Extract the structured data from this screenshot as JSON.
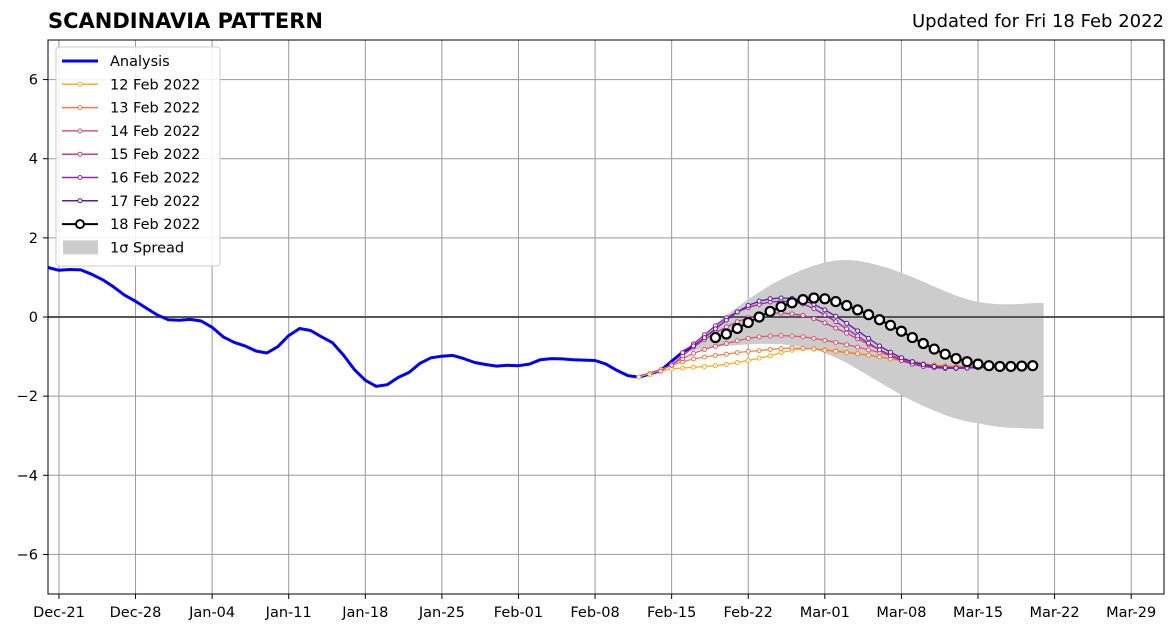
{
  "title": "SCANDINAVIA PATTERN",
  "subtitle": "Updated for Fri 18 Feb 2022",
  "chart_data": {
    "type": "line",
    "title": "SCANDINAVIA PATTERN",
    "xlabel": "",
    "ylabel": "",
    "xlim": [
      "2021-12-20",
      "2022-04-01"
    ],
    "ylim": [
      -7,
      7
    ],
    "yticks": [
      -6,
      -4,
      -2,
      0,
      2,
      4,
      6
    ],
    "ytick_labels": [
      "−6",
      "−4",
      "−2",
      "0",
      "2",
      "4",
      "6"
    ],
    "xticks": [
      "2021-12-21",
      "2021-12-28",
      "2022-01-04",
      "2022-01-11",
      "2022-01-18",
      "2022-01-25",
      "2022-02-01",
      "2022-02-08",
      "2022-02-15",
      "2022-02-22",
      "2022-03-01",
      "2022-03-08",
      "2022-03-15",
      "2022-03-22",
      "2022-03-29"
    ],
    "xtick_labels": [
      "Dec-21",
      "Dec-28",
      "Jan-04",
      "Jan-11",
      "Jan-18",
      "Jan-25",
      "Feb-01",
      "Feb-08",
      "Feb-15",
      "Feb-22",
      "Mar-01",
      "Mar-08",
      "Mar-15",
      "Mar-22",
      "Mar-29"
    ],
    "grid": true,
    "legend_position": "upper-left",
    "series": [
      {
        "name": "Analysis",
        "color": "#0000ee",
        "start": "2021-12-20",
        "values": [
          1.25,
          1.18,
          1.2,
          1.19,
          1.08,
          0.94,
          0.76,
          0.55,
          0.4,
          0.22,
          0.05,
          -0.07,
          -0.08,
          -0.06,
          -0.1,
          -0.26,
          -0.5,
          -0.64,
          -0.73,
          -0.86,
          -0.91,
          -0.75,
          -0.47,
          -0.29,
          -0.34,
          -0.5,
          -0.65,
          -0.96,
          -1.33,
          -1.6,
          -1.75,
          -1.71,
          -1.53,
          -1.4,
          -1.17,
          -1.03,
          -0.99,
          -0.97,
          -1.05,
          -1.15,
          -1.2,
          -1.24,
          -1.22,
          -1.23,
          -1.19,
          -1.08,
          -1.05,
          -1.06,
          -1.08,
          -1.09,
          -1.1,
          -1.19,
          -1.35,
          -1.48,
          -1.52,
          -1.44,
          -1.35,
          -1.12,
          -0.89,
          -0.73
        ]
      },
      {
        "name": "12 Feb 2022",
        "color": "#f9ac2a",
        "start": "2022-02-12",
        "values": [
          -1.52,
          -1.42,
          -1.36,
          -1.31,
          -1.29,
          -1.27,
          -1.25,
          -1.23,
          -1.2,
          -1.15,
          -1.1,
          -1.04,
          -0.98,
          -0.9,
          -0.84,
          -0.8,
          -0.8,
          -0.82,
          -0.85,
          -0.88,
          -0.92,
          -0.96,
          -1.0,
          -1.04,
          -1.09,
          -1.14,
          -1.18,
          -1.21,
          -1.23,
          -1.24,
          -1.24,
          -1.24,
          -1.24,
          -1.23,
          -1.22
        ]
      },
      {
        "name": "13 Feb 2022",
        "color": "#ee8045",
        "start": "2022-02-13",
        "values": [
          -1.45,
          -1.33,
          -1.22,
          -1.13,
          -1.06,
          -1.01,
          -0.97,
          -0.94,
          -0.9,
          -0.87,
          -0.85,
          -0.82,
          -0.8,
          -0.78,
          -0.79,
          -0.81,
          -0.84,
          -0.87,
          -0.9,
          -0.93,
          -0.97,
          -1.01,
          -1.06,
          -1.1,
          -1.15,
          -1.19,
          -1.22,
          -1.24,
          -1.25,
          -1.25,
          -1.24,
          -1.23,
          -1.23,
          -1.22
        ]
      },
      {
        "name": "14 Feb 2022",
        "color": "#dc5a72",
        "start": "2022-02-14",
        "values": [
          -1.37,
          -1.2,
          -1.05,
          -0.92,
          -0.82,
          -0.74,
          -0.67,
          -0.6,
          -0.54,
          -0.5,
          -0.48,
          -0.47,
          -0.48,
          -0.5,
          -0.54,
          -0.59,
          -0.64,
          -0.7,
          -0.76,
          -0.83,
          -0.9,
          -0.97,
          -1.05,
          -1.12,
          -1.18,
          -1.23,
          -1.26,
          -1.27,
          -1.27,
          -1.26,
          -1.25,
          -1.24,
          -1.23
        ]
      },
      {
        "name": "15 Feb 2022",
        "color": "#c13f89",
        "start": "2022-02-15",
        "values": [
          -1.22,
          -0.98,
          -0.76,
          -0.57,
          -0.4,
          -0.25,
          -0.12,
          -0.02,
          0.05,
          0.09,
          0.1,
          0.08,
          0.04,
          -0.04,
          -0.15,
          -0.28,
          -0.41,
          -0.55,
          -0.69,
          -0.83,
          -0.96,
          -1.07,
          -1.16,
          -1.22,
          -1.26,
          -1.28,
          -1.28,
          -1.27,
          -1.26,
          -1.25,
          -1.23,
          -1.22
        ]
      },
      {
        "name": "16 Feb 2022",
        "color": "#9a24a6",
        "start": "2022-02-16",
        "values": [
          -0.9,
          -0.68,
          -0.45,
          -0.22,
          -0.02,
          0.13,
          0.24,
          0.32,
          0.38,
          0.4,
          0.39,
          0.33,
          0.21,
          0.05,
          -0.12,
          -0.3,
          -0.48,
          -0.66,
          -0.83,
          -0.98,
          -1.1,
          -1.19,
          -1.25,
          -1.28,
          -1.3,
          -1.3,
          -1.29,
          -1.27,
          -1.26,
          -1.24,
          -1.23
        ]
      },
      {
        "name": "17 Feb 2022",
        "color": "#5a1ba3",
        "start": "2022-02-17",
        "values": [
          -0.73,
          -0.52,
          -0.3,
          -0.08,
          0.13,
          0.29,
          0.4,
          0.46,
          0.48,
          0.47,
          0.42,
          0.32,
          0.18,
          0.02,
          -0.16,
          -0.35,
          -0.54,
          -0.73,
          -0.89,
          -1.03,
          -1.13,
          -1.2,
          -1.25,
          -1.28,
          -1.29,
          -1.29,
          -1.28,
          -1.27,
          -1.25,
          -1.24
        ]
      },
      {
        "name": "18 Feb 2022",
        "color": "#000000",
        "start": "2022-02-19",
        "values": [
          -0.52,
          -0.43,
          -0.29,
          -0.14,
          0.0,
          0.14,
          0.26,
          0.36,
          0.44,
          0.48,
          0.46,
          0.39,
          0.29,
          0.18,
          0.06,
          -0.07,
          -0.21,
          -0.36,
          -0.52,
          -0.67,
          -0.81,
          -0.94,
          -1.05,
          -1.13,
          -1.19,
          -1.23,
          -1.25,
          -1.25,
          -1.24,
          -1.23
        ]
      }
    ],
    "spread": {
      "name": "1σ Spread",
      "color": "#cccccc",
      "start": "2022-02-16",
      "upper": [
        -0.9,
        -0.68,
        -0.43,
        -0.18,
        0.05,
        0.25,
        0.45,
        0.63,
        0.8,
        0.95,
        1.08,
        1.2,
        1.3,
        1.38,
        1.43,
        1.44,
        1.42,
        1.37,
        1.3,
        1.22,
        1.12,
        1.01,
        0.89,
        0.77,
        0.65,
        0.54,
        0.45,
        0.38,
        0.34,
        0.32,
        0.32,
        0.33,
        0.35,
        0.36
      ],
      "lower": [
        -0.9,
        -0.85,
        -0.8,
        -0.76,
        -0.73,
        -0.71,
        -0.69,
        -0.68,
        -0.68,
        -0.69,
        -0.72,
        -0.76,
        -0.82,
        -0.91,
        -1.03,
        -1.16,
        -1.32,
        -1.48,
        -1.65,
        -1.81,
        -1.97,
        -2.12,
        -2.25,
        -2.37,
        -2.48,
        -2.57,
        -2.64,
        -2.69,
        -2.74,
        -2.78,
        -2.8,
        -2.81,
        -2.82,
        -2.83
      ]
    }
  }
}
